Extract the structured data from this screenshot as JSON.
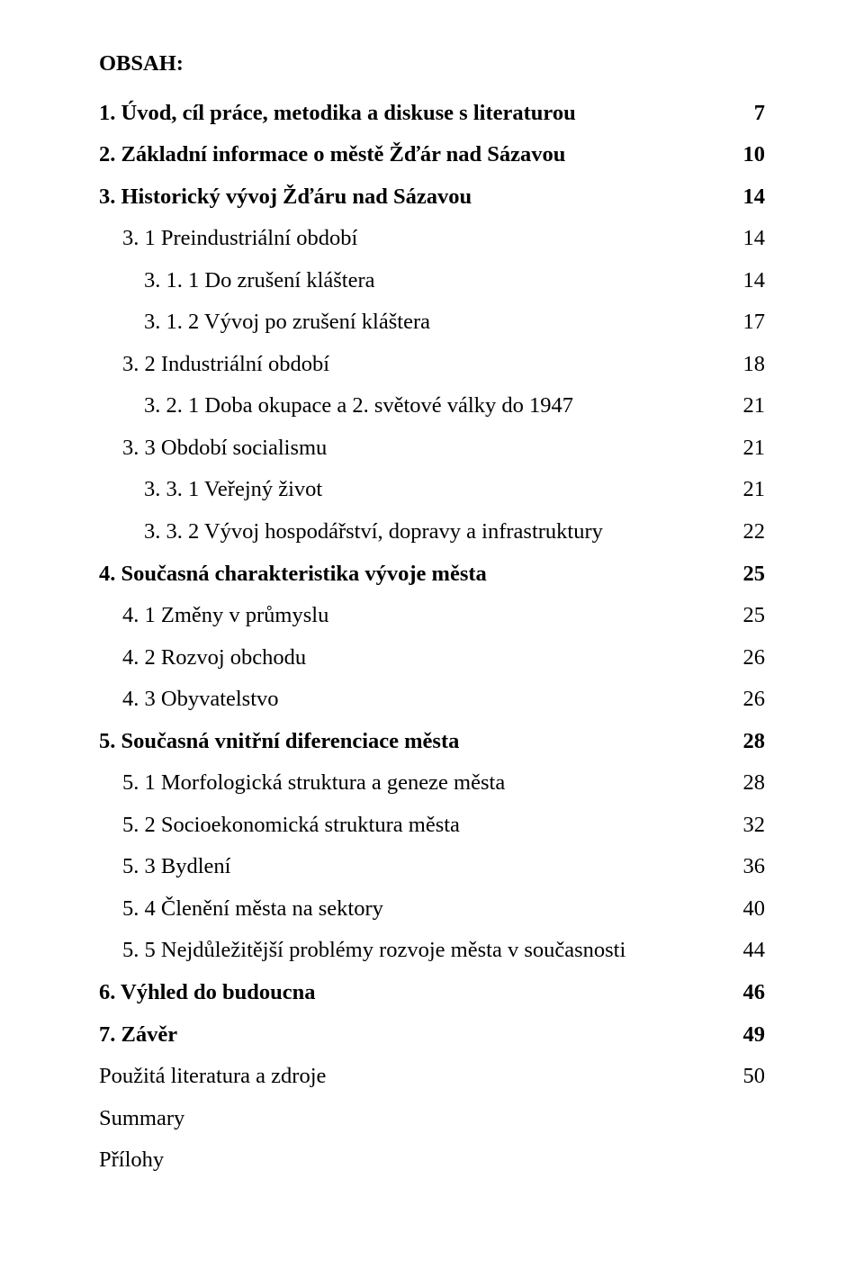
{
  "heading": "OBSAH:",
  "entries": [
    {
      "label": "1. Úvod, cíl práce, metodika a diskuse s literaturou",
      "page": "7",
      "level": 0,
      "bold": true
    },
    {
      "label": "2. Základní informace o městě Žďár nad Sázavou",
      "page": "10",
      "level": 0,
      "bold": true
    },
    {
      "label": "3. Historický vývoj Žďáru nad Sázavou",
      "page": "14",
      "level": 0,
      "bold": true
    },
    {
      "label": "3. 1 Preindustriální období",
      "page": "14",
      "level": 1,
      "bold": false
    },
    {
      "label": "3. 1. 1 Do zrušení kláštera",
      "page": "14",
      "level": 2,
      "bold": false
    },
    {
      "label": "3. 1. 2 Vývoj po zrušení kláštera",
      "page": "17",
      "level": 2,
      "bold": false
    },
    {
      "label": "3. 2 Industriální období",
      "page": "18",
      "level": 1,
      "bold": false
    },
    {
      "label": "3. 2. 1 Doba okupace a 2. světové války do 1947",
      "page": "21",
      "level": 2,
      "bold": false
    },
    {
      "label": "3. 3 Období socialismu",
      "page": "21",
      "level": 1,
      "bold": false
    },
    {
      "label": "3. 3. 1 Veřejný život",
      "page": "21",
      "level": 2,
      "bold": false
    },
    {
      "label": "3. 3. 2 Vývoj hospodářství, dopravy a infrastruktury",
      "page": "22",
      "level": 2,
      "bold": false
    },
    {
      "label": "4. Současná charakteristika vývoje města",
      "page": "25",
      "level": 0,
      "bold": true
    },
    {
      "label": "4. 1 Změny v průmyslu",
      "page": "25",
      "level": 1,
      "bold": false
    },
    {
      "label": "4. 2 Rozvoj obchodu",
      "page": "26",
      "level": 1,
      "bold": false
    },
    {
      "label": "4. 3 Obyvatelstvo",
      "page": "26",
      "level": 1,
      "bold": false
    },
    {
      "label": "5. Současná vnitřní diferenciace města",
      "page": "28",
      "level": 0,
      "bold": true
    },
    {
      "label": "5. 1 Morfologická struktura a geneze města",
      "page": "28",
      "level": 1,
      "bold": false
    },
    {
      "label": "5. 2 Socioekonomická struktura města",
      "page": "32",
      "level": 1,
      "bold": false
    },
    {
      "label": "5. 3 Bydlení",
      "page": "36",
      "level": 1,
      "bold": false
    },
    {
      "label": "5. 4 Členění města na sektory",
      "page": "40",
      "level": 1,
      "bold": false
    },
    {
      "label": "5. 5 Nejdůležitější problémy rozvoje města v současnosti",
      "page": "44",
      "level": 1,
      "bold": false
    },
    {
      "label": "6. Výhled do budoucna",
      "page": "46",
      "level": 0,
      "bold": true
    },
    {
      "label": "7. Závěr",
      "page": "49",
      "level": 0,
      "bold": true
    },
    {
      "label": "Použitá literatura a zdroje",
      "page": "50",
      "level": 0,
      "bold": false
    },
    {
      "label": "Summary",
      "page": "",
      "level": 0,
      "bold": false
    },
    {
      "label": "Přílohy",
      "page": "",
      "level": 0,
      "bold": false
    }
  ]
}
